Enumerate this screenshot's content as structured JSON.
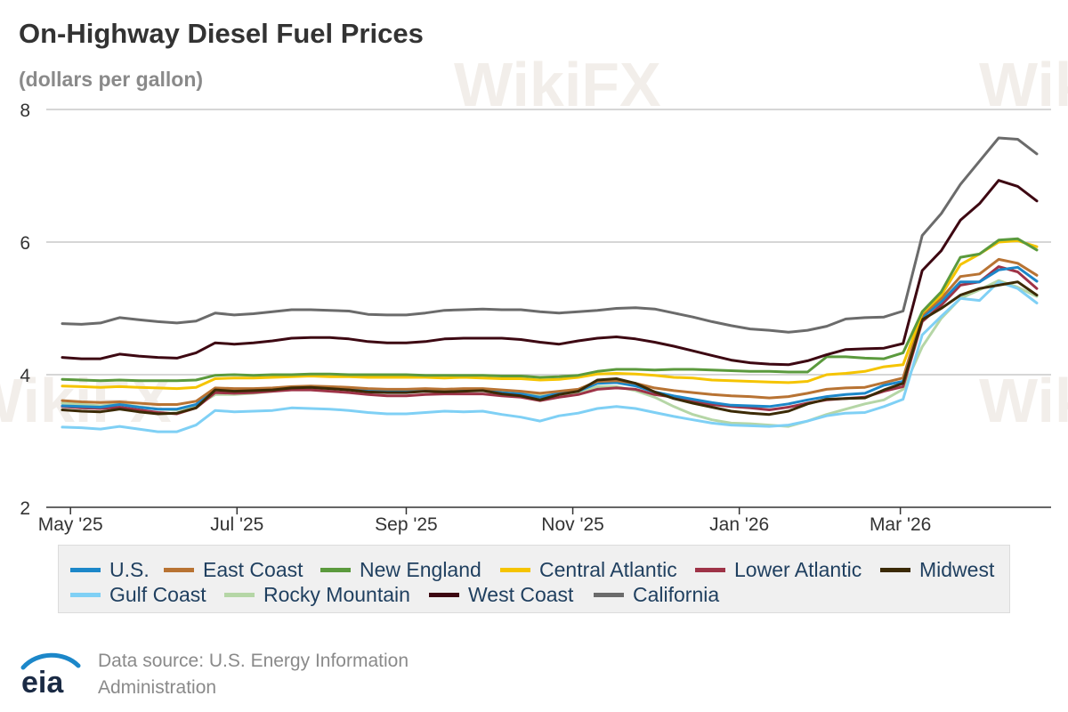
{
  "title": "On-Highway Diesel Fuel Prices",
  "subtitle": "(dollars per gallon)",
  "source_line1": "Data source: U.S. Energy Information",
  "source_line2": "Administration",
  "logo_text": "eia",
  "watermark_text": "WikiFX",
  "chart_data": {
    "type": "line",
    "ylim": [
      2,
      8
    ],
    "yticks": [
      2,
      4,
      6,
      8
    ],
    "x_start": "2025-04-28",
    "x_end": "2026-04-20",
    "xticks": [
      {
        "date": "2025-05-01",
        "label": "May '25"
      },
      {
        "date": "2025-07-01",
        "label": "Jul '25"
      },
      {
        "date": "2025-09-01",
        "label": "Sep '25"
      },
      {
        "date": "2025-11-01",
        "label": "Nov '25"
      },
      {
        "date": "2026-01-01",
        "label": "Jan '26"
      },
      {
        "date": "2026-03-01",
        "label": "Mar '26"
      }
    ],
    "x": [
      "2025-04-28",
      "2025-05-05",
      "2025-05-12",
      "2025-05-19",
      "2025-05-26",
      "2025-06-02",
      "2025-06-09",
      "2025-06-16",
      "2025-06-23",
      "2025-06-30",
      "2025-07-07",
      "2025-07-14",
      "2025-07-21",
      "2025-07-28",
      "2025-08-04",
      "2025-08-11",
      "2025-08-18",
      "2025-08-25",
      "2025-09-01",
      "2025-09-08",
      "2025-09-15",
      "2025-09-22",
      "2025-09-29",
      "2025-10-06",
      "2025-10-13",
      "2025-10-20",
      "2025-10-27",
      "2025-11-03",
      "2025-11-10",
      "2025-11-17",
      "2025-11-24",
      "2025-12-01",
      "2025-12-08",
      "2025-12-15",
      "2025-12-22",
      "2025-12-29",
      "2026-01-05",
      "2026-01-12",
      "2026-01-19",
      "2026-01-26",
      "2026-02-02",
      "2026-02-09",
      "2026-02-16",
      "2026-02-23",
      "2026-03-02",
      "2026-03-09",
      "2026-03-16",
      "2026-03-23",
      "2026-03-30",
      "2026-04-06",
      "2026-04-13",
      "2026-04-20"
    ],
    "legend_position": "bottom",
    "grid": true,
    "series": [
      {
        "name": "U.S.",
        "color": "#1c87c9",
        "values": [
          3.53,
          3.52,
          3.51,
          3.55,
          3.51,
          3.48,
          3.48,
          3.55,
          3.79,
          3.77,
          3.78,
          3.79,
          3.81,
          3.82,
          3.8,
          3.79,
          3.76,
          3.75,
          3.75,
          3.77,
          3.76,
          3.77,
          3.77,
          3.73,
          3.71,
          3.66,
          3.72,
          3.75,
          3.87,
          3.88,
          3.83,
          3.74,
          3.68,
          3.63,
          3.58,
          3.54,
          3.53,
          3.52,
          3.56,
          3.62,
          3.67,
          3.7,
          3.72,
          3.84,
          3.9,
          4.86,
          5.1,
          5.4,
          5.4,
          5.58,
          5.62,
          5.41
        ]
      },
      {
        "name": "East Coast",
        "color": "#b87333",
        "values": [
          3.61,
          3.59,
          3.58,
          3.59,
          3.57,
          3.55,
          3.55,
          3.6,
          3.8,
          3.79,
          3.79,
          3.8,
          3.82,
          3.83,
          3.82,
          3.81,
          3.79,
          3.78,
          3.78,
          3.79,
          3.78,
          3.79,
          3.79,
          3.77,
          3.75,
          3.72,
          3.75,
          3.78,
          3.9,
          3.91,
          3.87,
          3.8,
          3.76,
          3.73,
          3.7,
          3.68,
          3.67,
          3.65,
          3.67,
          3.72,
          3.78,
          3.8,
          3.81,
          3.88,
          3.95,
          4.9,
          5.15,
          5.48,
          5.52,
          5.74,
          5.68,
          5.5
        ]
      },
      {
        "name": "New England",
        "color": "#5b9a3d",
        "values": [
          3.93,
          3.92,
          3.91,
          3.92,
          3.91,
          3.91,
          3.91,
          3.92,
          3.99,
          4.0,
          3.99,
          4.0,
          4.0,
          4.01,
          4.01,
          4.0,
          4.0,
          4.0,
          4.0,
          3.99,
          3.99,
          3.99,
          3.99,
          3.98,
          3.98,
          3.96,
          3.97,
          3.99,
          4.05,
          4.08,
          4.08,
          4.07,
          4.08,
          4.08,
          4.07,
          4.06,
          4.05,
          4.05,
          4.04,
          4.04,
          4.27,
          4.27,
          4.25,
          4.24,
          4.33,
          4.95,
          5.25,
          5.77,
          5.82,
          6.03,
          6.05,
          5.88
        ]
      },
      {
        "name": "Central Atlantic",
        "color": "#f5c400",
        "values": [
          3.83,
          3.82,
          3.81,
          3.82,
          3.81,
          3.8,
          3.79,
          3.81,
          3.94,
          3.95,
          3.95,
          3.96,
          3.97,
          3.98,
          3.97,
          3.97,
          3.96,
          3.96,
          3.96,
          3.96,
          3.95,
          3.96,
          3.95,
          3.94,
          3.94,
          3.92,
          3.93,
          3.96,
          4.01,
          4.02,
          4.01,
          3.99,
          3.96,
          3.95,
          3.92,
          3.91,
          3.9,
          3.89,
          3.88,
          3.9,
          4.0,
          4.02,
          4.05,
          4.12,
          4.15,
          4.93,
          5.2,
          5.66,
          5.82,
          6.0,
          6.02,
          5.93
        ]
      },
      {
        "name": "Lower Atlantic",
        "color": "#9e3347",
        "values": [
          3.52,
          3.5,
          3.49,
          3.51,
          3.47,
          3.43,
          3.41,
          3.5,
          3.73,
          3.72,
          3.73,
          3.75,
          3.77,
          3.77,
          3.75,
          3.73,
          3.7,
          3.68,
          3.68,
          3.7,
          3.71,
          3.71,
          3.71,
          3.68,
          3.66,
          3.61,
          3.66,
          3.7,
          3.78,
          3.8,
          3.78,
          3.7,
          3.66,
          3.6,
          3.55,
          3.52,
          3.5,
          3.47,
          3.51,
          3.57,
          3.62,
          3.64,
          3.66,
          3.75,
          3.82,
          4.8,
          5.05,
          5.35,
          5.4,
          5.63,
          5.55,
          5.3
        ]
      },
      {
        "name": "Midwest",
        "color": "#3b2a05",
        "values": [
          3.47,
          3.45,
          3.44,
          3.48,
          3.44,
          3.41,
          3.42,
          3.5,
          3.77,
          3.75,
          3.76,
          3.77,
          3.8,
          3.81,
          3.79,
          3.77,
          3.74,
          3.73,
          3.73,
          3.75,
          3.74,
          3.75,
          3.76,
          3.71,
          3.68,
          3.62,
          3.7,
          3.75,
          3.92,
          3.94,
          3.87,
          3.74,
          3.64,
          3.57,
          3.51,
          3.45,
          3.42,
          3.4,
          3.45,
          3.56,
          3.63,
          3.64,
          3.65,
          3.77,
          3.87,
          4.83,
          5.0,
          5.2,
          5.3,
          5.35,
          5.4,
          5.2
        ]
      },
      {
        "name": "Gulf Coast",
        "color": "#7fd0f5",
        "values": [
          3.21,
          3.2,
          3.18,
          3.22,
          3.18,
          3.14,
          3.14,
          3.24,
          3.46,
          3.44,
          3.45,
          3.46,
          3.5,
          3.49,
          3.48,
          3.46,
          3.43,
          3.41,
          3.41,
          3.43,
          3.45,
          3.44,
          3.45,
          3.4,
          3.36,
          3.3,
          3.38,
          3.42,
          3.49,
          3.52,
          3.49,
          3.43,
          3.37,
          3.32,
          3.27,
          3.24,
          3.23,
          3.22,
          3.24,
          3.3,
          3.38,
          3.42,
          3.43,
          3.52,
          3.63,
          4.6,
          4.88,
          5.15,
          5.12,
          5.4,
          5.3,
          5.08
        ]
      },
      {
        "name": "Rocky Mountain",
        "color": "#b5d6a6",
        "values": [
          3.57,
          3.55,
          3.53,
          3.56,
          3.52,
          3.48,
          3.47,
          3.53,
          3.7,
          3.7,
          3.72,
          3.75,
          3.78,
          3.8,
          3.79,
          3.78,
          3.77,
          3.76,
          3.76,
          3.77,
          3.76,
          3.77,
          3.77,
          3.75,
          3.72,
          3.68,
          3.7,
          3.72,
          3.82,
          3.82,
          3.76,
          3.66,
          3.52,
          3.4,
          3.32,
          3.27,
          3.26,
          3.24,
          3.22,
          3.3,
          3.4,
          3.48,
          3.56,
          3.62,
          3.78,
          4.42,
          4.85,
          5.15,
          5.28,
          5.42,
          5.32,
          5.18
        ]
      },
      {
        "name": "West Coast",
        "color": "#3d0812",
        "values": [
          4.26,
          4.24,
          4.24,
          4.31,
          4.28,
          4.26,
          4.25,
          4.33,
          4.48,
          4.46,
          4.48,
          4.51,
          4.55,
          4.56,
          4.56,
          4.54,
          4.5,
          4.48,
          4.48,
          4.5,
          4.54,
          4.55,
          4.55,
          4.55,
          4.53,
          4.49,
          4.46,
          4.51,
          4.55,
          4.57,
          4.54,
          4.49,
          4.43,
          4.36,
          4.29,
          4.22,
          4.18,
          4.16,
          4.15,
          4.21,
          4.3,
          4.38,
          4.39,
          4.4,
          4.47,
          5.57,
          5.87,
          6.33,
          6.58,
          6.93,
          6.84,
          6.62
        ]
      },
      {
        "name": "California",
        "color": "#6b6b6b",
        "values": [
          4.77,
          4.76,
          4.78,
          4.86,
          4.83,
          4.8,
          4.78,
          4.81,
          4.93,
          4.9,
          4.92,
          4.95,
          4.98,
          4.98,
          4.97,
          4.96,
          4.91,
          4.9,
          4.9,
          4.93,
          4.97,
          4.98,
          4.99,
          4.98,
          4.98,
          4.95,
          4.93,
          4.95,
          4.97,
          5.0,
          5.01,
          4.99,
          4.93,
          4.87,
          4.8,
          4.74,
          4.69,
          4.67,
          4.64,
          4.67,
          4.73,
          4.84,
          4.86,
          4.87,
          4.96,
          6.1,
          6.43,
          6.87,
          7.22,
          7.57,
          7.55,
          7.33
        ]
      }
    ]
  }
}
